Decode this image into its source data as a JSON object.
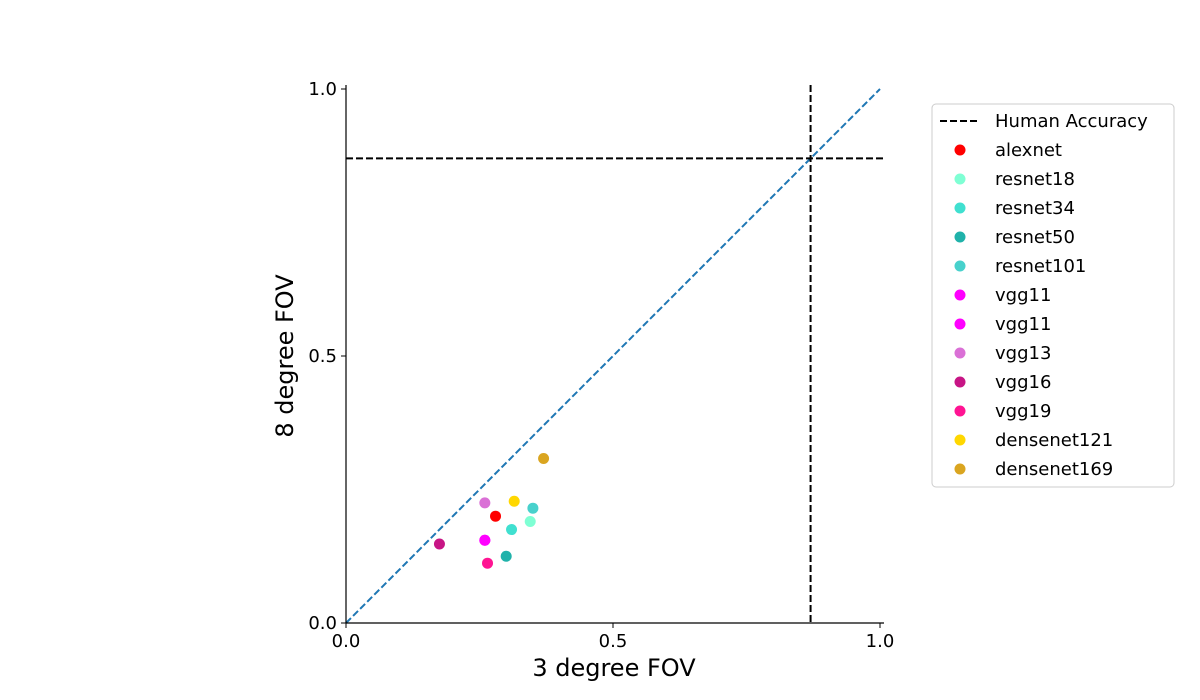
{
  "chart_data": {
    "type": "scatter",
    "title": "",
    "xlabel": "3 degree FOV",
    "ylabel": "8 degree FOV",
    "xlim": [
      0.0,
      1.0
    ],
    "ylim": [
      0.0,
      1.0
    ],
    "xticks": [
      "0.0",
      "0.5",
      "1.0"
    ],
    "yticks": [
      "0.0",
      "0.5",
      "1.0"
    ],
    "grid": false,
    "legend_position": "outside-right",
    "reference_lines": {
      "diagonal": {
        "color": "#1f77b4",
        "style": "dashed"
      },
      "human_accuracy": {
        "label": "Human Accuracy",
        "x": 0.87,
        "y": 0.87,
        "color": "#000000",
        "style": "dashed"
      }
    },
    "series": [
      {
        "name": "alexnet",
        "color": "#ff0000",
        "x": 0.28,
        "y": 0.2
      },
      {
        "name": "resnet18",
        "color": "#7fffd4",
        "x": 0.345,
        "y": 0.19
      },
      {
        "name": "resnet34",
        "color": "#40e0d0",
        "x": 0.31,
        "y": 0.175
      },
      {
        "name": "resnet50",
        "color": "#20b2aa",
        "x": 0.3,
        "y": 0.125
      },
      {
        "name": "resnet101",
        "color": "#48d1cc",
        "x": 0.35,
        "y": 0.215
      },
      {
        "name": "vgg11",
        "color": "#ff00ff",
        "x": 0.26,
        "y": 0.155
      },
      {
        "name": "vgg11",
        "color": "#ff00ff",
        "x": 0.26,
        "y": 0.155
      },
      {
        "name": "vgg13",
        "color": "#da70d6",
        "x": 0.26,
        "y": 0.225
      },
      {
        "name": "vgg16",
        "color": "#c71585",
        "x": 0.175,
        "y": 0.148
      },
      {
        "name": "vgg19",
        "color": "#ff1493",
        "x": 0.265,
        "y": 0.112
      },
      {
        "name": "densenet121",
        "color": "#ffd700",
        "x": 0.315,
        "y": 0.228
      },
      {
        "name": "densenet169",
        "color": "#daa520",
        "x": 0.37,
        "y": 0.308
      }
    ]
  }
}
